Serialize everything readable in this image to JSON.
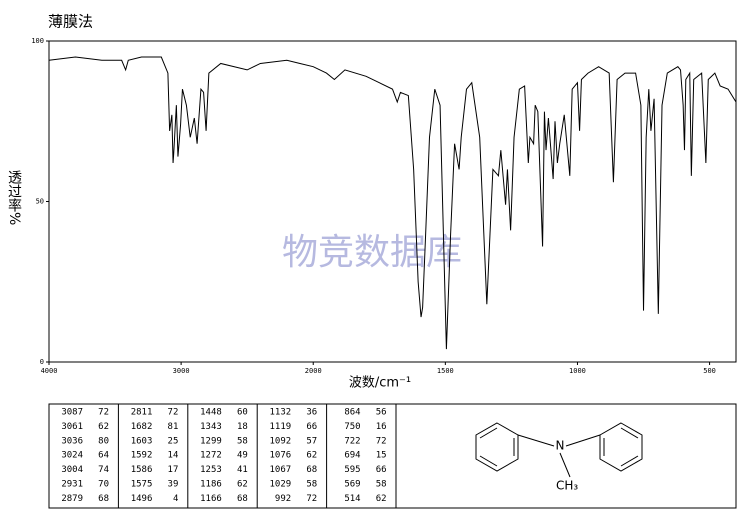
{
  "chart_data": {
    "type": "line",
    "title": "薄膜法",
    "watermark": "物竞数据库",
    "y_label": "透过率%",
    "x_label": "波数/cm⁻¹",
    "color": "#000000",
    "xlim": [
      4000,
      400
    ],
    "xbreak": 2000,
    "ylim": [
      0,
      100
    ],
    "yticks": [
      0,
      50,
      100
    ],
    "xticks": [
      4000,
      3000,
      2000,
      1500,
      1000,
      500
    ],
    "x": [
      4000,
      3800,
      3600,
      3450,
      3420,
      3400,
      3300,
      3150,
      3100,
      3087,
      3070,
      3061,
      3056,
      3036,
      3024,
      3004,
      2990,
      2960,
      2931,
      2900,
      2879,
      2850,
      2830,
      2811,
      2790,
      2700,
      2500,
      2400,
      2200,
      2100,
      2000,
      1950,
      1920,
      1880,
      1800,
      1750,
      1700,
      1682,
      1670,
      1640,
      1620,
      1603,
      1592,
      1586,
      1575,
      1560,
      1540,
      1520,
      1496,
      1480,
      1465,
      1448,
      1440,
      1420,
      1400,
      1370,
      1343,
      1320,
      1299,
      1290,
      1272,
      1265,
      1253,
      1240,
      1220,
      1200,
      1186,
      1180,
      1166,
      1160,
      1150,
      1132,
      1125,
      1119,
      1110,
      1092,
      1085,
      1076,
      1067,
      1050,
      1029,
      1020,
      1000,
      992,
      985,
      960,
      920,
      880,
      864,
      850,
      820,
      780,
      760,
      750,
      740,
      730,
      722,
      710,
      694,
      680,
      660,
      620,
      610,
      600,
      595,
      590,
      575,
      569,
      560,
      530,
      514,
      505,
      480,
      460,
      430,
      400
    ],
    "values": [
      94,
      95,
      94,
      94,
      91,
      94,
      95,
      95,
      90,
      72,
      77,
      62,
      65,
      80,
      64,
      74,
      85,
      80,
      70,
      76,
      68,
      85,
      84,
      72,
      90,
      93,
      91,
      93,
      94,
      93,
      92,
      90,
      88,
      91,
      89,
      87,
      85,
      81,
      84,
      83,
      60,
      25,
      14,
      17,
      39,
      70,
      85,
      80,
      4,
      40,
      68,
      60,
      70,
      85,
      87,
      70,
      18,
      60,
      58,
      66,
      49,
      60,
      41,
      70,
      85,
      86,
      62,
      70,
      68,
      80,
      78,
      36,
      78,
      66,
      76,
      57,
      75,
      62,
      68,
      77,
      58,
      85,
      87,
      72,
      88,
      90,
      92,
      90,
      56,
      88,
      90,
      90,
      80,
      16,
      70,
      85,
      72,
      82,
      15,
      80,
      90,
      92,
      91,
      80,
      66,
      88,
      90,
      58,
      88,
      90,
      62,
      88,
      90,
      86,
      85,
      81
    ]
  },
  "peak_table": [
    [
      [
        "3087",
        "72"
      ],
      [
        "3061",
        "62"
      ],
      [
        "3036",
        "80"
      ],
      [
        "3024",
        "64"
      ],
      [
        "3004",
        "74"
      ],
      [
        "2931",
        "70"
      ],
      [
        "2879",
        "68"
      ]
    ],
    [
      [
        "2811",
        "72"
      ],
      [
        "1682",
        "81"
      ],
      [
        "1603",
        "25"
      ],
      [
        "1592",
        "14"
      ],
      [
        "1586",
        "17"
      ],
      [
        "1575",
        "39"
      ],
      [
        "1496",
        "4"
      ]
    ],
    [
      [
        "1448",
        "60"
      ],
      [
        "1343",
        "18"
      ],
      [
        "1299",
        "58"
      ],
      [
        "1272",
        "49"
      ],
      [
        "1253",
        "41"
      ],
      [
        "1186",
        "62"
      ],
      [
        "1166",
        "68"
      ]
    ],
    [
      [
        "1132",
        "36"
      ],
      [
        "1119",
        "66"
      ],
      [
        "1092",
        "57"
      ],
      [
        "1076",
        "62"
      ],
      [
        "1067",
        "68"
      ],
      [
        "1029",
        "58"
      ],
      [
        "992",
        "72"
      ]
    ],
    [
      [
        "864",
        "56"
      ],
      [
        "750",
        "16"
      ],
      [
        "722",
        "72"
      ],
      [
        "694",
        "15"
      ],
      [
        "595",
        "66"
      ],
      [
        "569",
        "58"
      ],
      [
        "514",
        "62"
      ]
    ]
  ],
  "structure": {
    "atoms": [
      "N",
      "CH₃"
    ]
  }
}
